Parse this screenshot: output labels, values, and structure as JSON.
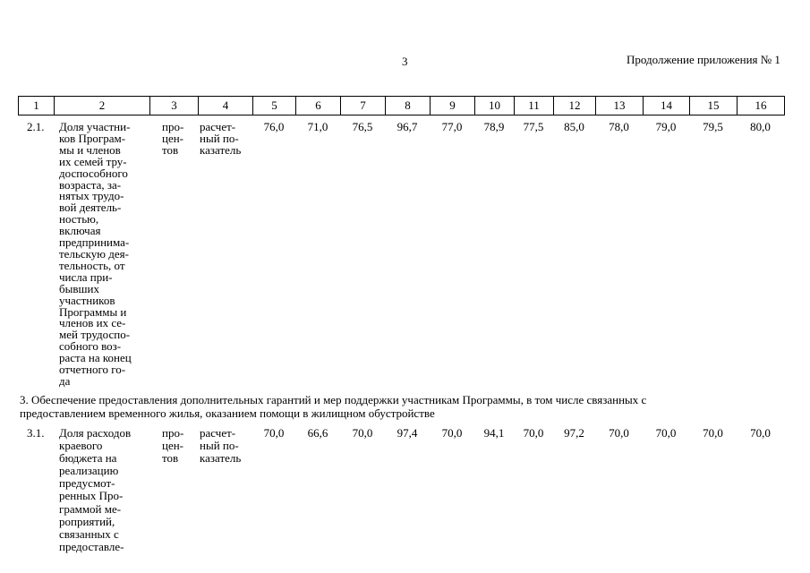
{
  "header": {
    "page_number": "3",
    "continuation": "Продолжение приложения № 1"
  },
  "table": {
    "columns": [
      "1",
      "2",
      "3",
      "4",
      "5",
      "6",
      "7",
      "8",
      "9",
      "10",
      "11",
      "12",
      "13",
      "14",
      "15",
      "16"
    ],
    "rows": [
      {
        "code": "2.1.",
        "name": [
          "Доля участни-",
          "ков Програм-",
          "мы и членов",
          "их семей тру-",
          "доспособного",
          "возраста, за-",
          "нятых трудо-",
          "вой деятель-",
          "ностью,",
          "включая",
          "предпринима-",
          "тельскую дея-",
          "тельность, от",
          "числа при-",
          "бывших",
          "участников",
          "Программы и",
          "членов их се-",
          "мей трудоспо-",
          "собного воз-",
          "раста на конец",
          "отчетного го-",
          "да"
        ],
        "unit": [
          "про-",
          "цен-",
          "тов"
        ],
        "method": [
          "расчет-",
          "ный по-",
          "казатель"
        ],
        "values": [
          "76,0",
          "71,0",
          "76,5",
          "96,7",
          "77,0",
          "78,9",
          "77,5",
          "85,0",
          "78,0",
          "79,0",
          "79,5",
          "80,0"
        ]
      },
      {
        "section": [
          "3. Обеспечение предоставления дополнительных гарантий и мер поддержки участникам Программы, в том числе связанных с",
          "предоставлением временного жилья, оказанием помощи в жилищном обустройстве"
        ]
      },
      {
        "code": "3.1.",
        "name": [
          "Доля расходов",
          "краевого",
          "бюджета на",
          "реализацию",
          "предусмот-",
          "ренных Про-",
          "граммой ме-",
          "роприятий,",
          "связанных с",
          "предоставле-"
        ],
        "unit": [
          "про-",
          "цен-",
          "тов"
        ],
        "method": [
          "расчет-",
          "ный по-",
          "казатель"
        ],
        "values": [
          "70,0",
          "66,6",
          "70,0",
          "97,4",
          "70,0",
          "94,1",
          "70,0",
          "97,2",
          "70,0",
          "70,0",
          "70,0",
          "70,0"
        ]
      }
    ]
  }
}
